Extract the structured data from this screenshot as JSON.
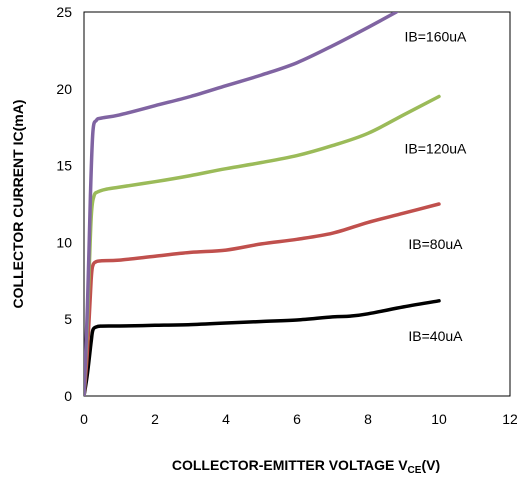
{
  "chart_data": {
    "type": "line",
    "title": "",
    "xlabel_main": "COLLECTOR-EMITTER VOLTAGE V",
    "xlabel_sub": "CE",
    "xlabel_suffix": "(V)",
    "ylabel": "COLLECTOR CURRENT IC(mA)",
    "xlim": [
      0,
      12
    ],
    "ylim": [
      0,
      25
    ],
    "xticks": [
      "0",
      "2",
      "4",
      "6",
      "8",
      "10",
      "12"
    ],
    "yticks": [
      "0",
      "5",
      "10",
      "15",
      "20",
      "25"
    ],
    "grid": false,
    "legend": "none",
    "series": [
      {
        "name": "IB=40uA",
        "color": "#000000",
        "points": [
          [
            0,
            0
          ],
          [
            0.1,
            1.5
          ],
          [
            0.2,
            3.5
          ],
          [
            0.25,
            4.3
          ],
          [
            0.35,
            4.5
          ],
          [
            0.5,
            4.55
          ],
          [
            1,
            4.56
          ],
          [
            2,
            4.6
          ],
          [
            3,
            4.65
          ],
          [
            4,
            4.75
          ],
          [
            5,
            4.85
          ],
          [
            6,
            4.95
          ],
          [
            7,
            5.15
          ],
          [
            7.5,
            5.2
          ],
          [
            8,
            5.35
          ],
          [
            9,
            5.8
          ],
          [
            10,
            6.2
          ]
        ]
      },
      {
        "name": "IB=80uA",
        "color": "#c0504d",
        "points": [
          [
            0,
            0
          ],
          [
            0.1,
            3
          ],
          [
            0.2,
            7.5
          ],
          [
            0.25,
            8.5
          ],
          [
            0.35,
            8.75
          ],
          [
            0.5,
            8.8
          ],
          [
            1,
            8.85
          ],
          [
            2,
            9.1
          ],
          [
            3,
            9.35
          ],
          [
            4,
            9.5
          ],
          [
            5,
            9.9
          ],
          [
            6,
            10.2
          ],
          [
            7,
            10.6
          ],
          [
            8,
            11.3
          ],
          [
            9,
            11.9
          ],
          [
            10,
            12.5
          ]
        ]
      },
      {
        "name": "IB=120uA",
        "color": "#9bbb59",
        "points": [
          [
            0,
            0
          ],
          [
            0.1,
            5
          ],
          [
            0.2,
            11.5
          ],
          [
            0.28,
            13
          ],
          [
            0.4,
            13.3
          ],
          [
            0.6,
            13.45
          ],
          [
            1,
            13.6
          ],
          [
            2,
            13.95
          ],
          [
            3,
            14.35
          ],
          [
            4,
            14.8
          ],
          [
            5,
            15.2
          ],
          [
            6,
            15.65
          ],
          [
            7,
            16.3
          ],
          [
            8,
            17.1
          ],
          [
            9,
            18.3
          ],
          [
            10,
            19.5
          ]
        ]
      },
      {
        "name": "IB=160uA",
        "color": "#8064a2",
        "points": [
          [
            0,
            0
          ],
          [
            0.1,
            6
          ],
          [
            0.18,
            13
          ],
          [
            0.25,
            17.2
          ],
          [
            0.35,
            17.95
          ],
          [
            0.5,
            18.1
          ],
          [
            1,
            18.3
          ],
          [
            2,
            18.9
          ],
          [
            3,
            19.5
          ],
          [
            4,
            20.2
          ],
          [
            5,
            20.9
          ],
          [
            6,
            21.7
          ],
          [
            7,
            22.8
          ],
          [
            8,
            24
          ],
          [
            8.8,
            25
          ]
        ]
      }
    ],
    "annotations": [
      {
        "text": "IB=160uA",
        "x": 9.9,
        "y": 23.4
      },
      {
        "text": "IB=120uA",
        "x": 9.9,
        "y": 16.1
      },
      {
        "text": "IB=80uA",
        "x": 9.9,
        "y": 9.9
      },
      {
        "text": "IB=40uA",
        "x": 9.9,
        "y": 3.9
      }
    ]
  }
}
